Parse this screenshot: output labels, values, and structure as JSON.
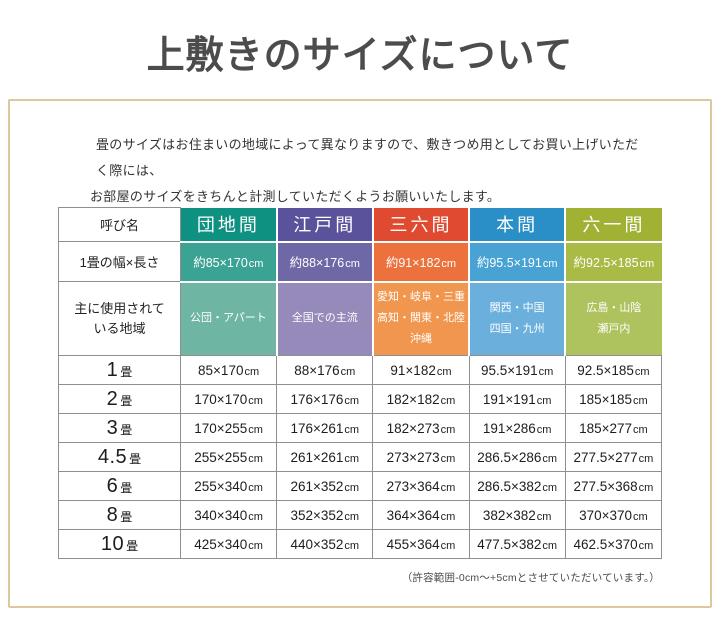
{
  "page": {
    "title": "上敷きのサイズについて",
    "description_lines": [
      "畳のサイズはお住まいの地域によって異なりますので、敷きつめ用としてお買い上げいただく際には、",
      "お部屋のサイズをきちんと計測していただくようお願いいたします。"
    ],
    "footnote": "（許容範囲-0cm～+5cmとさせていただいています。）"
  },
  "table": {
    "header_label": "呼び名",
    "width_row_label": "1畳の幅×長さ",
    "region_row_label": "主に使用されて\nいる地域",
    "unit": "cm",
    "size_unit": "畳",
    "columns": [
      {
        "name": "団地間",
        "mat_size": "約85×170",
        "regions": [
          "公団・アパート"
        ],
        "colors": {
          "dark": "#0e9180",
          "mid": "#3aa394",
          "light": "#6fb5a4"
        }
      },
      {
        "name": "江戸間",
        "mat_size": "約88×176",
        "regions": [
          "全国での主流"
        ],
        "colors": {
          "dark": "#5a529a",
          "mid": "#6e68a7",
          "light": "#958ab9"
        }
      },
      {
        "name": "三六間",
        "mat_size": "約91×182",
        "regions": [
          "愛知・岐阜・三重",
          "高知・関東・北陸",
          "沖縄"
        ],
        "colors": {
          "dark": "#e04a30",
          "mid": "#ec713d",
          "light": "#f0964f"
        }
      },
      {
        "name": "本間",
        "mat_size": "約95.5×191",
        "regions": [
          "関西・中国",
          "四国・九州"
        ],
        "colors": {
          "dark": "#2b8fc7",
          "mid": "#48a2d4",
          "light": "#6bb0dd"
        }
      },
      {
        "name": "六一間",
        "mat_size": "約92.5×185",
        "regions": [
          "広島・山陰",
          "瀬戸内"
        ],
        "colors": {
          "dark": "#a0b134",
          "mid": "#a9ba45",
          "light": "#aec25e"
        }
      }
    ],
    "size_rows": [
      {
        "size": "1",
        "values": [
          "85×170",
          "88×176",
          "91×182",
          "95.5×191",
          "92.5×185"
        ]
      },
      {
        "size": "2",
        "values": [
          "170×170",
          "176×176",
          "182×182",
          "191×191",
          "185×185"
        ]
      },
      {
        "size": "3",
        "values": [
          "170×255",
          "176×261",
          "182×273",
          "191×286",
          "185×277"
        ]
      },
      {
        "size": "4.5",
        "values": [
          "255×255",
          "261×261",
          "273×273",
          "286.5×286",
          "277.5×277"
        ]
      },
      {
        "size": "6",
        "values": [
          "255×340",
          "261×352",
          "273×364",
          "286.5×382",
          "277.5×368"
        ]
      },
      {
        "size": "8",
        "values": [
          "340×340",
          "352×352",
          "364×364",
          "382×382",
          "370×370"
        ]
      },
      {
        "size": "10",
        "values": [
          "425×340",
          "440×352",
          "455×364",
          "477.5×382",
          "462.5×370"
        ]
      }
    ]
  }
}
